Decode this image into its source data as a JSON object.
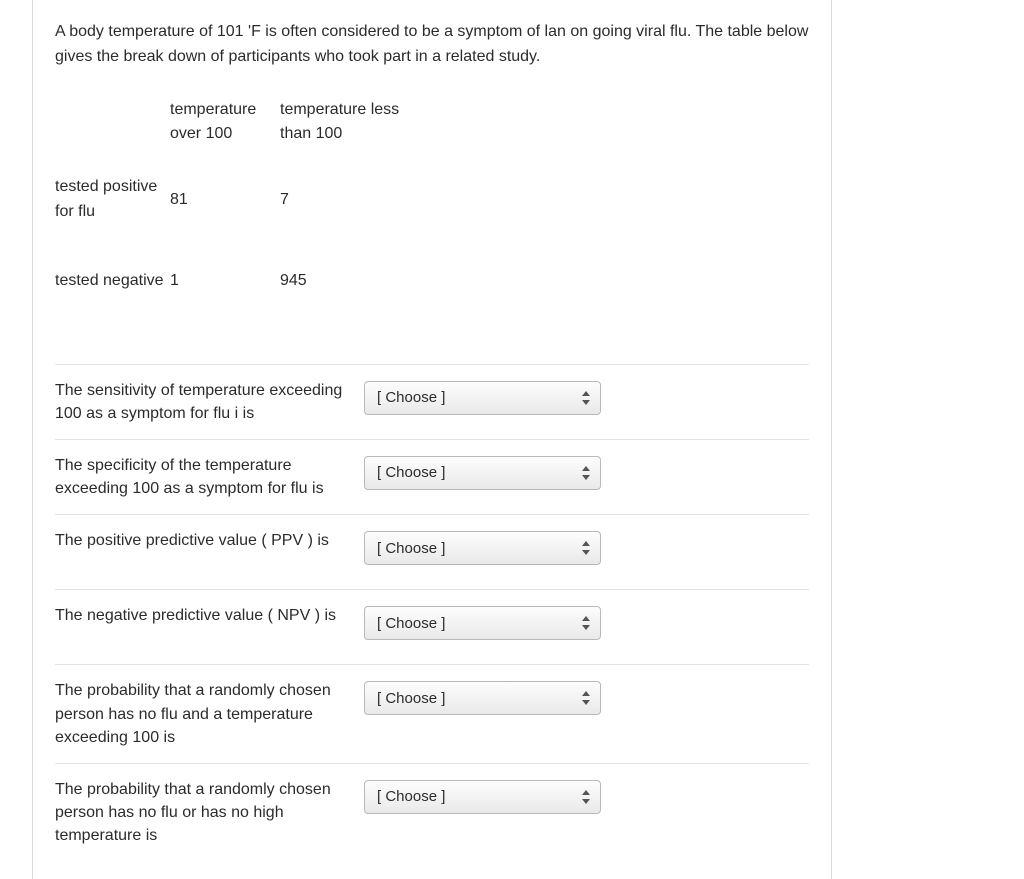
{
  "intro": "A body temperature of 101 'F is often considered to be a symptom of lan on going viral flu.  The table below gives the break down of participants who took part in a related study.",
  "table": {
    "col_headers": {
      "over": "temperature over 100",
      "less": "temperature less than 100"
    },
    "rows": [
      {
        "label": "tested positive for flu",
        "over": "81",
        "less": "7"
      },
      {
        "label": "tested negative",
        "over": "1",
        "less": "945"
      }
    ]
  },
  "dropdown_placeholder": "[ Choose ]",
  "questions": [
    {
      "prompt": "The sensitivity of temperature exceeding 100 as a symptom for flu i is"
    },
    {
      "prompt": "The specificity of the temperature exceeding 100 as a symptom for flu is"
    },
    {
      "prompt": "The positive predictive value ( PPV ) is"
    },
    {
      "prompt": "The negative predictive value ( NPV ) is"
    },
    {
      "prompt": "The probability that a randomly chosen person has no flu and a temperature exceeding 100 is"
    },
    {
      "prompt": "The probability that a randomly chosen person has no flu or has no high temperature is"
    }
  ],
  "colors": {
    "text": "#2b2b2b",
    "divider": "#e3e3e3",
    "card_border": "#d9d9d9",
    "dropdown_border": "#b9b9b9",
    "dropdown_grad_top": "#fdfdfd",
    "dropdown_grad_bot": "#e9e9e9"
  }
}
